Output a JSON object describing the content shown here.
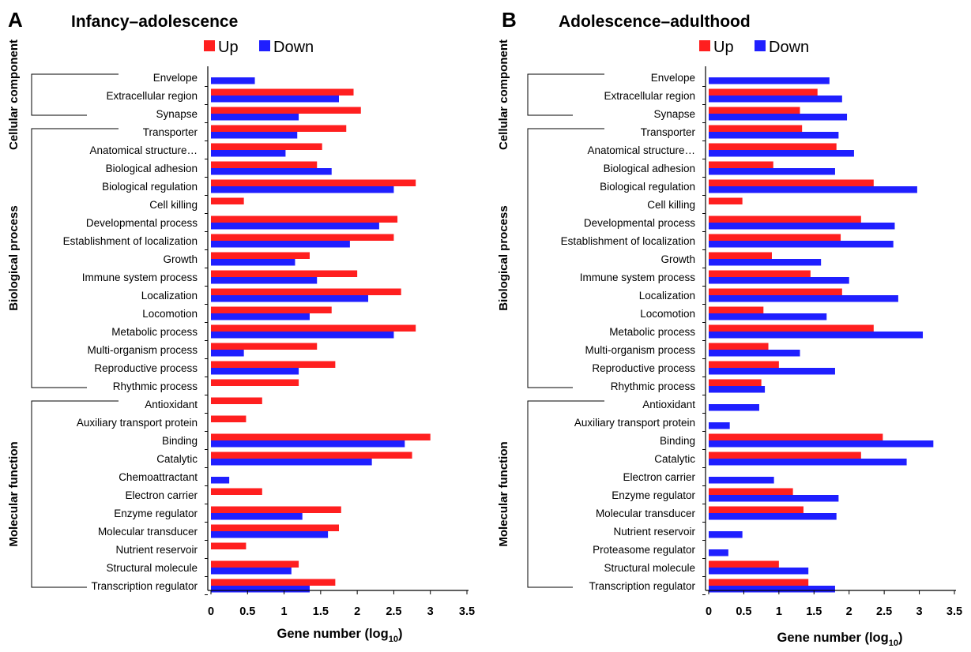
{
  "colors": {
    "up": "#ff1f1f",
    "down": "#1f1fff",
    "axis": "#000000"
  },
  "chart_data": [
    {
      "type": "bar",
      "orientation": "horizontal",
      "panel_letter": "A",
      "title": "Infancy–adolescence",
      "xlabel_main": "Gene number (log",
      "xlabel_sub": "10",
      "xlabel_end": ")",
      "xlim": [
        0,
        3.5
      ],
      "xticks": [
        "0",
        "0.5",
        "1",
        "1.5",
        "2",
        "2.5",
        "3",
        "3.5"
      ],
      "legend": [
        "Up",
        "Down"
      ],
      "legend_position": "top",
      "groups": [
        {
          "label": "Cellular component",
          "first": 0,
          "last": 2
        },
        {
          "label": "Biological process",
          "first": 3,
          "last": 17
        },
        {
          "label": "Molecular function",
          "first": 18,
          "last": 28
        }
      ],
      "categories": [
        "Envelope",
        "Extracellular region",
        "Synapse",
        "Transporter",
        "Anatomical structure…",
        "Biological adhesion",
        "Biological regulation",
        "Cell killing",
        "Developmental process",
        "Establishment of localization",
        "Growth",
        "Immune system process",
        "Localization",
        "Locomotion",
        "Metabolic process",
        "Multi-organism process",
        "Reproductive process",
        "Rhythmic process",
        "Antioxidant",
        "Auxiliary transport protein",
        "Binding",
        "Catalytic",
        "Chemoattractant",
        "Electron carrier",
        "Enzyme regulator",
        "Molecular transducer",
        "Nutrient reservoir",
        "Structural molecule",
        "Transcription regulator"
      ],
      "series": [
        {
          "name": "Up",
          "values": [
            0,
            1.95,
            2.05,
            1.85,
            1.52,
            1.45,
            2.8,
            0.45,
            2.55,
            2.5,
            1.35,
            2.0,
            2.6,
            1.65,
            2.8,
            1.45,
            1.7,
            1.2,
            0.7,
            0.48,
            3.0,
            2.75,
            0,
            0.7,
            1.78,
            1.75,
            0.48,
            1.2,
            1.7
          ]
        },
        {
          "name": "Down",
          "values": [
            0.6,
            1.75,
            1.2,
            1.18,
            1.02,
            1.65,
            2.5,
            0,
            2.3,
            1.9,
            1.15,
            1.45,
            2.15,
            1.35,
            2.5,
            0.45,
            1.2,
            0,
            0,
            0,
            2.65,
            2.2,
            0.25,
            0,
            1.25,
            1.6,
            0,
            1.1,
            1.35
          ]
        }
      ]
    },
    {
      "type": "bar",
      "orientation": "horizontal",
      "panel_letter": "B",
      "title": "Adolescence–adulthood",
      "xlabel_main": "Gene number (log",
      "xlabel_sub": "10",
      "xlabel_end": ")",
      "xlim": [
        0,
        3.5
      ],
      "xticks": [
        "0",
        "0.5",
        "1",
        "1.5",
        "2",
        "2.5",
        "3",
        "3.5"
      ],
      "legend": [
        "Up",
        "Down"
      ],
      "legend_position": "top",
      "groups": [
        {
          "label": "Cellular component",
          "first": 0,
          "last": 2
        },
        {
          "label": "Biological process",
          "first": 3,
          "last": 17
        },
        {
          "label": "Molecular function",
          "first": 18,
          "last": 28
        }
      ],
      "categories": [
        "Envelope",
        "Extracellular region",
        "Synapse",
        "Transporter",
        "Anatomical structure…",
        "Biological adhesion",
        "Biological regulation",
        "Cell killing",
        "Developmental process",
        "Establishment of localization",
        "Growth",
        "Immune system process",
        "Localization",
        "Locomotion",
        "Metabolic process",
        "Multi-organism process",
        "Reproductive process",
        "Rhythmic process",
        "Antioxidant",
        "Auxiliary transport protein",
        "Binding",
        "Catalytic",
        "Electron carrier",
        "Enzyme regulator",
        "Molecular transducer",
        "Nutrient reservoir",
        "Proteasome regulator",
        "Structural molecule",
        "Transcription regulator"
      ],
      "series": [
        {
          "name": "Up",
          "values": [
            0,
            1.55,
            1.3,
            1.33,
            1.82,
            0.92,
            2.35,
            0.48,
            2.17,
            1.88,
            0.9,
            1.45,
            1.9,
            0.78,
            2.35,
            0.85,
            1.0,
            0.75,
            0,
            0,
            2.48,
            2.17,
            0,
            1.2,
            1.35,
            0,
            0,
            1.0,
            1.42
          ]
        },
        {
          "name": "Down",
          "values": [
            1.72,
            1.9,
            1.97,
            1.85,
            2.07,
            1.8,
            2.97,
            0,
            2.65,
            2.63,
            1.6,
            2.0,
            2.7,
            1.68,
            3.05,
            1.3,
            1.8,
            0.8,
            0.72,
            0.3,
            3.2,
            2.82,
            0.93,
            1.85,
            1.82,
            0.48,
            0.28,
            1.42,
            1.8
          ]
        }
      ]
    }
  ]
}
